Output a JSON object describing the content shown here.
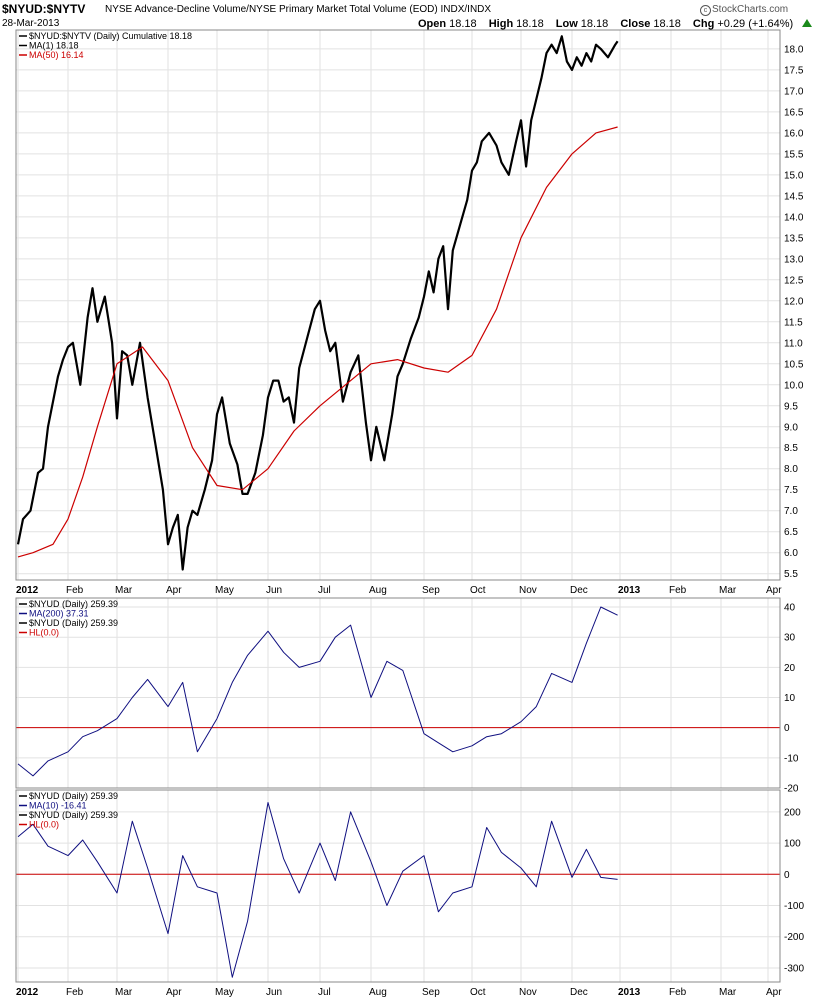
{
  "header": {
    "symbol": "$NYUD:$NYTV",
    "description": "NYSE Advance-Decline Volume/NYSE Primary Market Total Volume (EOD) INDX/INDX",
    "date": "28-Mar-2013",
    "open_label": "Open",
    "open": "18.18",
    "high_label": "High",
    "high": "18.18",
    "low_label": "Low",
    "low": "18.18",
    "close_label": "Close",
    "close": "18.18",
    "chg_label": "Chg",
    "chg": "+0.29 (+1.64%)",
    "logo": "StockCharts.com",
    "logo_mark": "c",
    "up_color": "#1a8a1a"
  },
  "chart_data": [
    {
      "type": "line",
      "panel": "price",
      "legend": [
        {
          "text": "$NYUD:$NYTV (Daily) Cumulative 18.18",
          "color": "#000000"
        },
        {
          "text": "MA(1) 18.18",
          "color": "#000000"
        },
        {
          "text": "MA(50) 16.14",
          "color": "#cc0000"
        }
      ],
      "ylim": [
        5.35,
        18.45
      ],
      "yticks": [
        "5.5",
        "6.0",
        "6.5",
        "7.0",
        "7.5",
        "8.0",
        "8.5",
        "9.0",
        "9.5",
        "10.0",
        "10.5",
        "11.0",
        "11.5",
        "12.0",
        "12.5",
        "13.0",
        "13.5",
        "14.0",
        "14.5",
        "15.0",
        "15.5",
        "16.0",
        "16.5",
        "17.0",
        "17.5",
        "18.0"
      ],
      "series": [
        {
          "color": "#000000",
          "x": [
            0,
            0.1,
            0.25,
            0.4,
            0.5,
            0.6,
            0.7,
            0.8,
            0.9,
            1.0,
            1.1,
            1.25,
            1.4,
            1.5,
            1.6,
            1.75,
            1.9,
            2.0,
            2.1,
            2.2,
            2.3,
            2.45,
            2.6,
            2.75,
            2.9,
            3.0,
            3.1,
            3.2,
            3.3,
            3.4,
            3.5,
            3.6,
            3.75,
            3.9,
            4.0,
            4.1,
            4.25,
            4.4,
            4.5,
            4.6,
            4.75,
            4.9,
            5.0,
            5.1,
            5.2,
            5.3,
            5.4,
            5.5,
            5.6,
            5.75,
            5.9,
            6.0,
            6.1,
            6.2,
            6.3,
            6.45,
            6.6,
            6.75,
            6.9,
            7.0,
            7.1,
            7.25,
            7.4,
            7.5,
            7.6,
            7.75,
            7.9,
            8.0,
            8.1,
            8.2,
            8.3,
            8.4,
            8.5,
            8.6,
            8.75,
            8.9,
            9.0,
            9.1,
            9.2,
            9.35,
            9.5,
            9.6,
            9.75,
            9.9,
            10.0,
            10.1,
            10.2,
            10.3,
            10.4,
            10.5,
            10.6,
            10.7,
            10.8,
            10.9,
            11.0,
            11.1,
            11.2,
            11.3,
            11.4,
            11.5,
            11.6,
            11.75,
            11.9,
            11.95
          ],
          "y": [
            6.2,
            6.8,
            7.0,
            7.9,
            8.0,
            9.0,
            9.6,
            10.2,
            10.6,
            10.9,
            11.0,
            10.0,
            11.6,
            12.3,
            11.5,
            12.1,
            11.0,
            9.2,
            10.8,
            10.7,
            10.0,
            11.0,
            9.7,
            8.6,
            7.5,
            6.2,
            6.6,
            6.9,
            5.6,
            6.6,
            7.0,
            6.9,
            7.5,
            8.2,
            9.3,
            9.7,
            8.6,
            8.1,
            7.4,
            7.4,
            7.9,
            8.8,
            9.7,
            10.1,
            10.1,
            9.6,
            9.7,
            9.1,
            10.4,
            11.1,
            11.8,
            12.0,
            11.3,
            10.8,
            11.0,
            9.6,
            10.3,
            10.7,
            9.1,
            8.2,
            9.0,
            8.2,
            9.3,
            10.2,
            10.5,
            11.1,
            11.6,
            12.1,
            12.7,
            12.2,
            13.0,
            13.3,
            11.8,
            13.2,
            13.8,
            14.4,
            15.1,
            15.3,
            15.8,
            16.0,
            15.7,
            15.3,
            15.0,
            15.8,
            16.3,
            15.2,
            16.3,
            16.8,
            17.3,
            17.9,
            18.1,
            17.9,
            18.3,
            17.7,
            17.5,
            17.8,
            17.6,
            17.9,
            17.7,
            18.1,
            18.0,
            17.8,
            18.1,
            18.18
          ]
        },
        {
          "color": "#cc0000",
          "x": [
            0,
            0.3,
            0.7,
            1.0,
            1.3,
            1.6,
            2.0,
            2.5,
            3.0,
            3.5,
            4.0,
            4.5,
            5.0,
            5.5,
            6.0,
            6.5,
            7.0,
            7.5,
            8.0,
            8.5,
            9.0,
            9.5,
            10.0,
            10.5,
            11.0,
            11.5,
            11.95
          ],
          "y": [
            5.9,
            6.0,
            6.2,
            6.8,
            7.8,
            9.0,
            10.5,
            10.9,
            10.1,
            8.5,
            7.6,
            7.5,
            8.0,
            8.9,
            9.5,
            10.0,
            10.5,
            10.6,
            10.4,
            10.3,
            10.7,
            11.8,
            13.5,
            14.7,
            15.5,
            16.0,
            16.14
          ]
        }
      ]
    },
    {
      "type": "line",
      "panel": "nyud-ma200",
      "legend": [
        {
          "text": "$NYUD (Daily) 259.39",
          "color": "#000000"
        },
        {
          "text": "MA(200) 37.31",
          "color": "#0f0f80"
        },
        {
          "text": "$NYUD (Daily) 259.39",
          "color": "#000000"
        },
        {
          "text": "HL(0.0)",
          "color": "#cc0000"
        }
      ],
      "ylim": [
        -20,
        43
      ],
      "yticks": [
        "-20",
        "-10",
        "0",
        "10",
        "20",
        "30",
        "40"
      ],
      "hline": 0,
      "series": [
        {
          "color": "#0f0f80",
          "x": [
            0,
            0.3,
            0.6,
            1.0,
            1.3,
            1.6,
            2.0,
            2.3,
            2.6,
            3.0,
            3.3,
            3.6,
            4.0,
            4.3,
            4.6,
            5.0,
            5.3,
            5.6,
            6.0,
            6.3,
            6.6,
            7.0,
            7.3,
            7.6,
            8.0,
            8.3,
            8.6,
            9.0,
            9.3,
            9.6,
            10.0,
            10.3,
            10.6,
            11.0,
            11.3,
            11.6,
            11.95
          ],
          "y": [
            -12,
            -16,
            -11,
            -8,
            -3,
            -1,
            3,
            10,
            16,
            7,
            15,
            -8,
            3,
            15,
            24,
            32,
            25,
            20,
            22,
            30,
            34,
            10,
            22,
            19,
            -2,
            -5,
            -8,
            -6,
            -3,
            -2,
            2,
            7,
            18,
            15,
            28,
            40,
            37.31
          ]
        }
      ]
    },
    {
      "type": "line",
      "panel": "nyud-ma10",
      "legend": [
        {
          "text": "$NYUD (Daily) 259.39",
          "color": "#000000"
        },
        {
          "text": "MA(10) -16.41",
          "color": "#0f0f80"
        },
        {
          "text": "$NYUD (Daily) 259.39",
          "color": "#000000"
        },
        {
          "text": "HL(0.0)",
          "color": "#cc0000"
        }
      ],
      "ylim": [
        -345,
        270
      ],
      "yticks": [
        "-300",
        "-200",
        "-100",
        "0",
        "100",
        "200"
      ],
      "hline": 0,
      "series": [
        {
          "color": "#0f0f80",
          "x": [
            0,
            0.3,
            0.6,
            1.0,
            1.3,
            1.6,
            2.0,
            2.3,
            2.6,
            3.0,
            3.3,
            3.6,
            4.0,
            4.3,
            4.6,
            5.0,
            5.3,
            5.6,
            6.0,
            6.3,
            6.6,
            7.0,
            7.3,
            7.6,
            8.0,
            8.3,
            8.6,
            9.0,
            9.3,
            9.6,
            10.0,
            10.3,
            10.6,
            11.0,
            11.3,
            11.6,
            11.95
          ],
          "y": [
            120,
            160,
            90,
            60,
            110,
            40,
            -60,
            170,
            20,
            -190,
            60,
            -40,
            -60,
            -330,
            -150,
            230,
            50,
            -60,
            100,
            -20,
            200,
            40,
            -100,
            10,
            60,
            -120,
            -60,
            -40,
            150,
            70,
            20,
            -40,
            170,
            -10,
            80,
            -10,
            -16.41
          ]
        }
      ]
    }
  ],
  "x_axis": {
    "labels": [
      "2012",
      "Feb",
      "Mar",
      "Apr",
      "May",
      "Jun",
      "Jul",
      "Aug",
      "Sep",
      "Oct",
      "Nov",
      "Dec",
      "2013",
      "Feb",
      "Mar",
      "Apr"
    ],
    "bold": [
      true,
      false,
      false,
      false,
      false,
      false,
      false,
      false,
      false,
      false,
      false,
      false,
      true,
      false,
      false,
      false
    ]
  },
  "colors": {
    "grid": "#e2e2e2",
    "frame": "#888888",
    "zero_line": "#cc0000"
  }
}
